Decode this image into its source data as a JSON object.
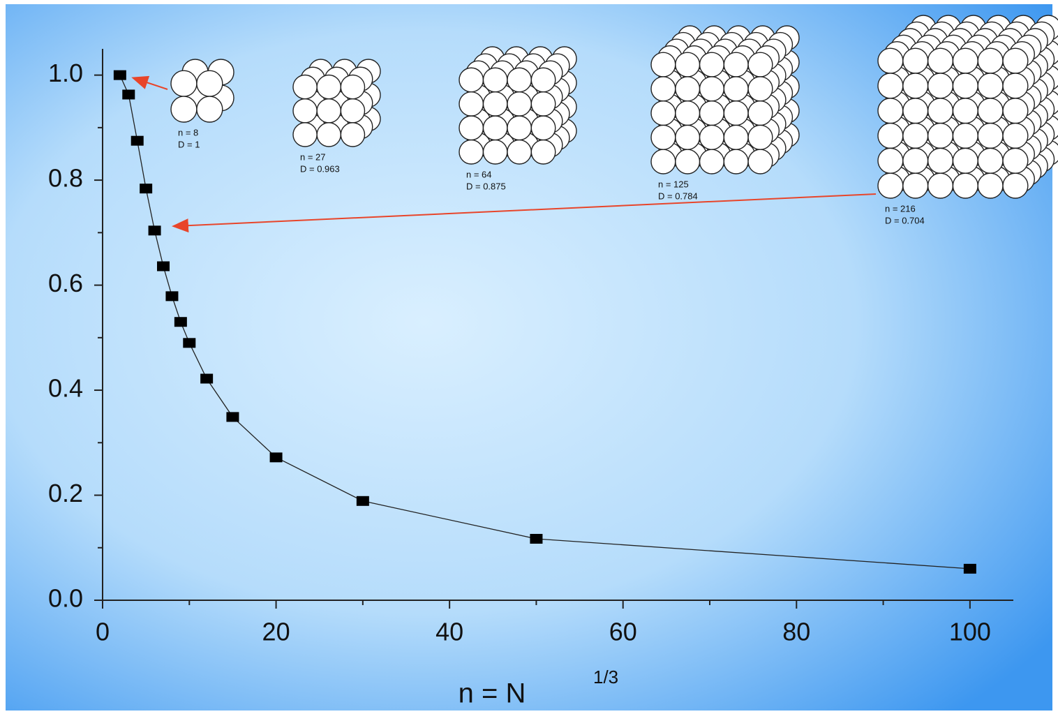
{
  "chart_data": {
    "type": "scatter",
    "x": [
      2,
      3,
      4,
      5,
      6,
      7,
      8,
      9,
      10,
      12,
      15,
      20,
      30,
      50,
      100
    ],
    "values": [
      1.0,
      0.963,
      0.875,
      0.784,
      0.704,
      0.636,
      0.579,
      0.53,
      0.49,
      0.422,
      0.349,
      0.272,
      0.189,
      0.117,
      0.06
    ],
    "color": "#000000",
    "line": true,
    "x_label": "n = N",
    "x_label_sup": "1/3",
    "xlim": [
      0,
      105
    ],
    "ylim": [
      0,
      1.05
    ],
    "xticks": [
      0,
      20,
      40,
      60,
      80,
      100
    ],
    "xminorticks": [
      10,
      30,
      50,
      70,
      90
    ],
    "yticks": [
      {
        "value": 0,
        "label": "0.0"
      },
      0.2,
      0.4,
      0.6,
      0.8,
      {
        "value": 1,
        "label": "1.0"
      }
    ],
    "yminorticks": [
      0.1,
      0.3,
      0.5,
      0.7,
      0.9
    ],
    "annotations": [
      {
        "n": "n = 8",
        "d": "D = 1"
      },
      {
        "n": "n = 27",
        "d": "D = 0.963"
      },
      {
        "n": "n = 64",
        "d": "D = 0.875"
      },
      {
        "n": "n = 125",
        "d": "D = 0.784"
      },
      {
        "n": "n = 216",
        "d": "D = 0.704"
      }
    ]
  }
}
